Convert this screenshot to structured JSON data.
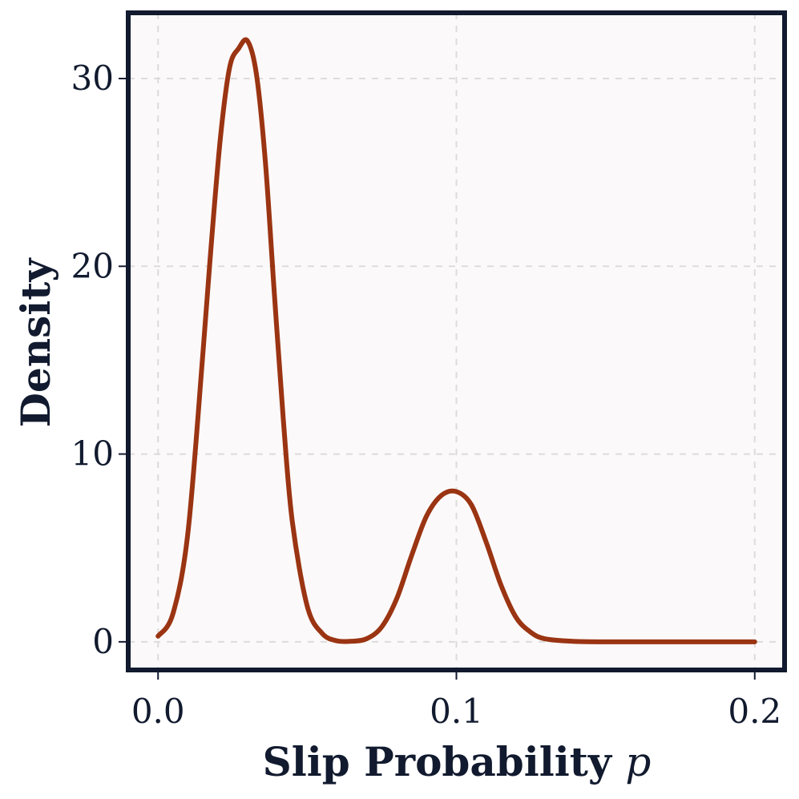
{
  "chart_data": {
    "type": "line",
    "xlabel": "Slip Probability",
    "xlabel_var": "p",
    "ylabel": "Density",
    "xlim": [
      -0.01,
      0.21
    ],
    "ylim": [
      -1.5,
      33.5
    ],
    "x_ticks": [
      0.0,
      0.1,
      0.2
    ],
    "x_tick_labels": [
      "0.0",
      "0.1",
      "0.2"
    ],
    "y_ticks": [
      0,
      10,
      20,
      30
    ],
    "y_tick_labels": [
      "0",
      "10",
      "20",
      "30"
    ],
    "grid": true,
    "series": [
      {
        "color": "#9a3412",
        "x": [
          0.0,
          0.005,
          0.01,
          0.015,
          0.018,
          0.021,
          0.024,
          0.027,
          0.03,
          0.033,
          0.036,
          0.039,
          0.042,
          0.045,
          0.05,
          0.055,
          0.06,
          0.065,
          0.07,
          0.075,
          0.08,
          0.085,
          0.09,
          0.095,
          0.1,
          0.105,
          0.11,
          0.115,
          0.12,
          0.125,
          0.13,
          0.14,
          0.15,
          0.17,
          0.2
        ],
        "y": [
          0.3,
          1.5,
          5.8,
          15.3,
          21.5,
          27.0,
          30.6,
          31.6,
          32.0,
          30.2,
          25.5,
          18.5,
          11.8,
          6.4,
          1.9,
          0.45,
          0.05,
          0.03,
          0.17,
          0.8,
          2.3,
          4.6,
          6.7,
          7.8,
          8.0,
          7.3,
          5.3,
          3.0,
          1.3,
          0.5,
          0.15,
          0.02,
          0.0,
          0.0,
          0.0
        ]
      }
    ]
  },
  "colors": {
    "frame": "#111a2e",
    "plot_bg": "#fcf9fa",
    "line": "#9a3412"
  }
}
